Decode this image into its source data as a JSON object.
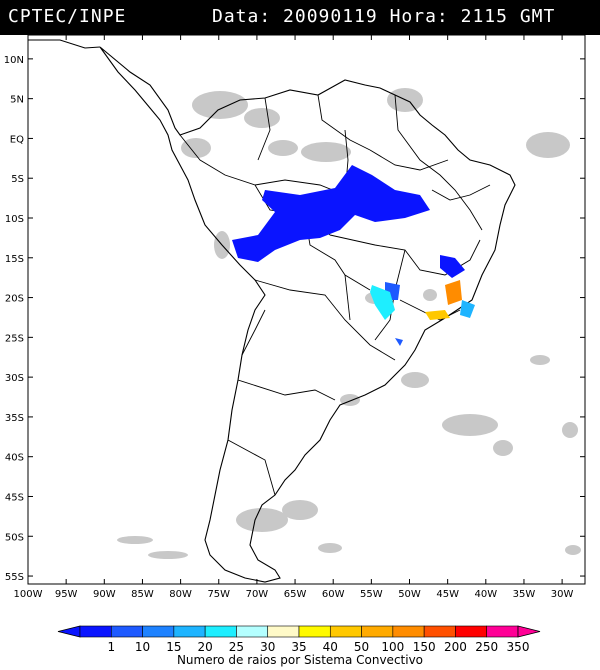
{
  "header": {
    "source": "CPTEC/INPE",
    "date_label": "Data:",
    "date_value": "20090119",
    "hour_label": "Hora:",
    "hour_value": "2115",
    "timezone": "GMT"
  },
  "map": {
    "lon_ticks": [
      "100W",
      "95W",
      "90W",
      "85W",
      "80W",
      "75W",
      "70W",
      "65W",
      "60W",
      "55W",
      "50W",
      "45W",
      "40W",
      "35W",
      "30W"
    ],
    "lat_ticks": [
      "10N",
      "5N",
      "EQ",
      "5S",
      "10S",
      "15S",
      "20S",
      "25S",
      "30S",
      "35S",
      "40S",
      "45S",
      "50S",
      "55S"
    ],
    "lon_range": [
      -100,
      -27
    ],
    "lat_range": [
      -56,
      13
    ],
    "land_color": "#ffffff",
    "cloud_color": "#c8c8c8",
    "outline_color": "#000000"
  },
  "colorbar": {
    "labels": [
      "1",
      "10",
      "15",
      "20",
      "25",
      "30",
      "35",
      "40",
      "50",
      "100",
      "150",
      "200",
      "250",
      "350"
    ],
    "colors": [
      "#0a14ff",
      "#1e5aff",
      "#1e82ff",
      "#1eb4ff",
      "#1eeeff",
      "#b4ffff",
      "#fffac8",
      "#fffa00",
      "#ffc800",
      "#ffaa00",
      "#ff8c00",
      "#ff5000",
      "#ff0000",
      "#ff0096"
    ],
    "title": "Numero de raios por Sistema Convectivo"
  }
}
